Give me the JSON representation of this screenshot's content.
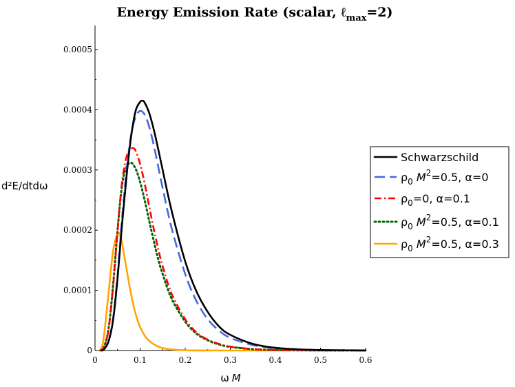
{
  "chart_data": {
    "type": "line",
    "title": {
      "main": "Energy Emission Rate (scalar, ℓ",
      "sub": "max",
      "end": "=2)"
    },
    "xlabel": {
      "omega": "ω",
      "m": "M"
    },
    "ylabel": "d²E/dtdω",
    "xlim": [
      0,
      0.6
    ],
    "ylim": [
      0,
      0.00054
    ],
    "x_ticks": [
      "0",
      "0.1",
      "0.2",
      "0.3",
      "0.4",
      "0.5",
      "0.6"
    ],
    "y_ticks": [
      "0",
      "0.0001",
      "0.0002",
      "0.0003",
      "0.0004",
      "0.0005"
    ],
    "series": [
      {
        "name": "Schwarzschild",
        "color": "#000000",
        "dash": "solid",
        "legend": [
          {
            "t": "Schwarzschild"
          }
        ],
        "points": [
          [
            0.015,
            0
          ],
          [
            0.02,
            2e-06
          ],
          [
            0.03,
            1.5e-05
          ],
          [
            0.04,
            5e-05
          ],
          [
            0.05,
            0.00012
          ],
          [
            0.06,
            0.00021
          ],
          [
            0.07,
            0.00029
          ],
          [
            0.08,
            0.000355
          ],
          [
            0.09,
            0.000398
          ],
          [
            0.1,
            0.000413
          ],
          [
            0.105,
            0.000415
          ],
          [
            0.11,
            0.000412
          ],
          [
            0.12,
            0.000395
          ],
          [
            0.13,
            0.000368
          ],
          [
            0.14,
            0.000335
          ],
          [
            0.15,
            0.0003
          ],
          [
            0.17,
            0.000232
          ],
          [
            0.2,
            0.000148
          ],
          [
            0.225,
            9.8e-05
          ],
          [
            0.25,
            6.4e-05
          ],
          [
            0.275,
            4e-05
          ],
          [
            0.3,
            2.6e-05
          ],
          [
            0.35,
            1.1e-05
          ],
          [
            0.4,
            4.5e-06
          ],
          [
            0.45,
            2e-06
          ],
          [
            0.5,
            8e-07
          ],
          [
            0.6,
            1e-07
          ]
        ]
      },
      {
        "name": "ρ0 M²=0.5, α=0",
        "color": "#4169E1",
        "dash": "longdash",
        "legend": [
          {
            "t": "ρ"
          },
          {
            "t": "0",
            "sub": true
          },
          {
            "t": " "
          },
          {
            "t": "M",
            "italic": true
          },
          {
            "t": "2",
            "sup": true
          },
          {
            "t": "=0.5, α=0"
          }
        ],
        "points": [
          [
            0.015,
            0
          ],
          [
            0.02,
            2e-06
          ],
          [
            0.03,
            1.6e-05
          ],
          [
            0.04,
            5.3e-05
          ],
          [
            0.05,
            0.000125
          ],
          [
            0.06,
            0.00022
          ],
          [
            0.07,
            0.0003
          ],
          [
            0.08,
            0.000358
          ],
          [
            0.09,
            0.000388
          ],
          [
            0.1,
            0.000398
          ],
          [
            0.11,
            0.000392
          ],
          [
            0.12,
            0.000372
          ],
          [
            0.13,
            0.000342
          ],
          [
            0.14,
            0.000306
          ],
          [
            0.15,
            0.00027
          ],
          [
            0.17,
            0.000203
          ],
          [
            0.2,
            0.000127
          ],
          [
            0.225,
            8.2e-05
          ],
          [
            0.25,
            5.2e-05
          ],
          [
            0.275,
            3.3e-05
          ],
          [
            0.3,
            2.1e-05
          ],
          [
            0.35,
            9e-06
          ],
          [
            0.4,
            3.7e-06
          ],
          [
            0.45,
            1.5e-06
          ],
          [
            0.5,
            6e-07
          ],
          [
            0.6,
            1e-07
          ]
        ]
      },
      {
        "name": "ρ0=0, α=0.1",
        "color": "#FF0000",
        "dash": "dashdot",
        "legend": [
          {
            "t": "ρ"
          },
          {
            "t": "0",
            "sub": true
          },
          {
            "t": "=0, α=0.1"
          }
        ],
        "points": [
          [
            0.012,
            0
          ],
          [
            0.02,
            6e-06
          ],
          [
            0.03,
            3.5e-05
          ],
          [
            0.04,
            0.000105
          ],
          [
            0.05,
            0.0002
          ],
          [
            0.06,
            0.00028
          ],
          [
            0.07,
            0.000322
          ],
          [
            0.08,
            0.000335
          ],
          [
            0.085,
            0.000336
          ],
          [
            0.09,
            0.000332
          ],
          [
            0.1,
            0.00031
          ],
          [
            0.11,
            0.000278
          ],
          [
            0.12,
            0.00024
          ],
          [
            0.13,
            0.000203
          ],
          [
            0.14,
            0.000169
          ],
          [
            0.15,
            0.00014
          ],
          [
            0.17,
            9.4e-05
          ],
          [
            0.2,
            5.2e-05
          ],
          [
            0.225,
            3e-05
          ],
          [
            0.25,
            1.8e-05
          ],
          [
            0.275,
            1.1e-05
          ],
          [
            0.3,
            6.5e-06
          ],
          [
            0.35,
            2.4e-06
          ],
          [
            0.4,
            9e-07
          ],
          [
            0.5,
            1e-07
          ],
          [
            0.6,
            0
          ]
        ]
      },
      {
        "name": "ρ0 M²=0.5, α=0.1",
        "color": "#006400",
        "dash": "dotted",
        "legend": [
          {
            "t": "ρ"
          },
          {
            "t": "0",
            "sub": true
          },
          {
            "t": " "
          },
          {
            "t": "M",
            "italic": true
          },
          {
            "t": "2",
            "sup": true
          },
          {
            "t": "=0.5, α=0.1"
          }
        ],
        "points": [
          [
            0.012,
            0
          ],
          [
            0.02,
            6e-06
          ],
          [
            0.03,
            3.6e-05
          ],
          [
            0.04,
            0.000108
          ],
          [
            0.05,
            0.0002
          ],
          [
            0.06,
            0.000275
          ],
          [
            0.07,
            0.000305
          ],
          [
            0.08,
            0.000312
          ],
          [
            0.09,
            0.000302
          ],
          [
            0.1,
            0.00028
          ],
          [
            0.11,
            0.00025
          ],
          [
            0.12,
            0.000216
          ],
          [
            0.13,
            0.000183
          ],
          [
            0.14,
            0.000152
          ],
          [
            0.15,
            0.000127
          ],
          [
            0.17,
            8.6e-05
          ],
          [
            0.2,
            4.8e-05
          ],
          [
            0.225,
            2.8e-05
          ],
          [
            0.25,
            1.7e-05
          ],
          [
            0.275,
            1e-05
          ],
          [
            0.3,
            6e-06
          ],
          [
            0.35,
            2.2e-06
          ],
          [
            0.4,
            8e-07
          ],
          [
            0.5,
            1e-07
          ],
          [
            0.6,
            0
          ]
        ]
      },
      {
        "name": "ρ0 M²=0.5, α=0.3",
        "color": "#FFA500",
        "dash": "solid",
        "legend": [
          {
            "t": "ρ"
          },
          {
            "t": "0",
            "sub": true
          },
          {
            "t": " "
          },
          {
            "t": "M",
            "italic": true
          },
          {
            "t": "2",
            "sup": true
          },
          {
            "t": "=0.5, α=0.3"
          }
        ],
        "points": [
          [
            0.01,
            0
          ],
          [
            0.015,
            5e-06
          ],
          [
            0.02,
            2.5e-05
          ],
          [
            0.03,
            9.5e-05
          ],
          [
            0.04,
            0.000165
          ],
          [
            0.05,
            0.000194
          ],
          [
            0.055,
            0.000192
          ],
          [
            0.06,
            0.000178
          ],
          [
            0.07,
            0.000135
          ],
          [
            0.08,
            9.3e-05
          ],
          [
            0.09,
            6.1e-05
          ],
          [
            0.1,
            3.9e-05
          ],
          [
            0.11,
            2.5e-05
          ],
          [
            0.12,
            1.6e-05
          ],
          [
            0.14,
            6.5e-06
          ],
          [
            0.16,
            2.6e-06
          ],
          [
            0.2,
            4e-07
          ],
          [
            0.25,
            5e-08
          ],
          [
            0.3,
            0
          ],
          [
            0.6,
            0
          ]
        ]
      }
    ],
    "legend_position": "right"
  }
}
